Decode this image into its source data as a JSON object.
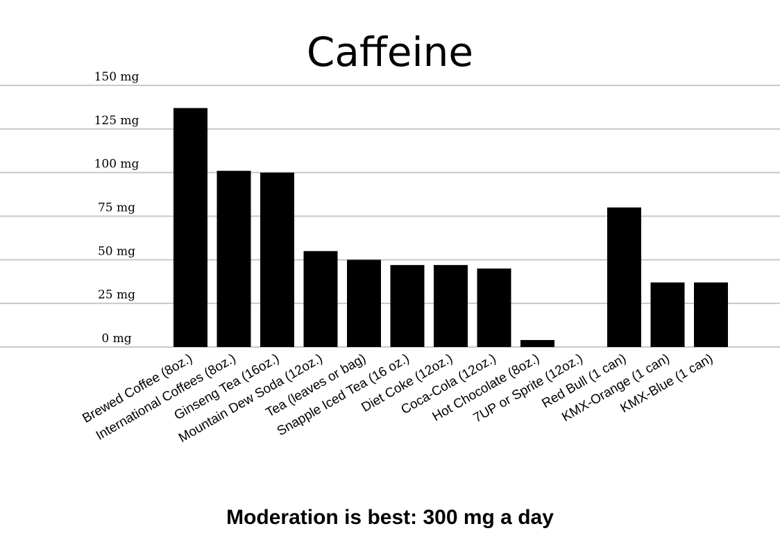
{
  "chart_data": {
    "type": "bar",
    "title": "Caffeine",
    "subtitle": "Moderation is best: 300 mg a day",
    "xlabel": "",
    "ylabel": "",
    "ylim": [
      0,
      150
    ],
    "y_ticks": [
      0,
      25,
      50,
      75,
      100,
      125,
      150
    ],
    "y_tick_labels": [
      "0 mg",
      "25 mg",
      "50 mg",
      "75 mg",
      "100 mg",
      "125 mg",
      "150 mg"
    ],
    "grid": true,
    "bar_color": "#000000",
    "grid_color": "#c8c8c8",
    "categories": [
      "Brewed Coffee (8oz.)",
      "International Coffees (8oz.)",
      "Ginseng Tea (16oz.)",
      "Mountain Dew Soda (12oz.)",
      "Tea (leaves or bag)",
      "Snapple Iced Tea (16 oz.)",
      "Diet Coke (12oz.)",
      "Coca-Cola (12oz.)",
      "Hot Chocolate (8oz.)",
      "7UP or Sprite (12oz.)",
      "Red Bull (1 can)",
      "KMX-Orange (1 can)",
      "KMX-Blue (1 can)"
    ],
    "values": [
      137,
      101,
      100,
      55,
      50,
      47,
      47,
      45,
      4,
      0,
      80,
      37,
      37
    ]
  }
}
